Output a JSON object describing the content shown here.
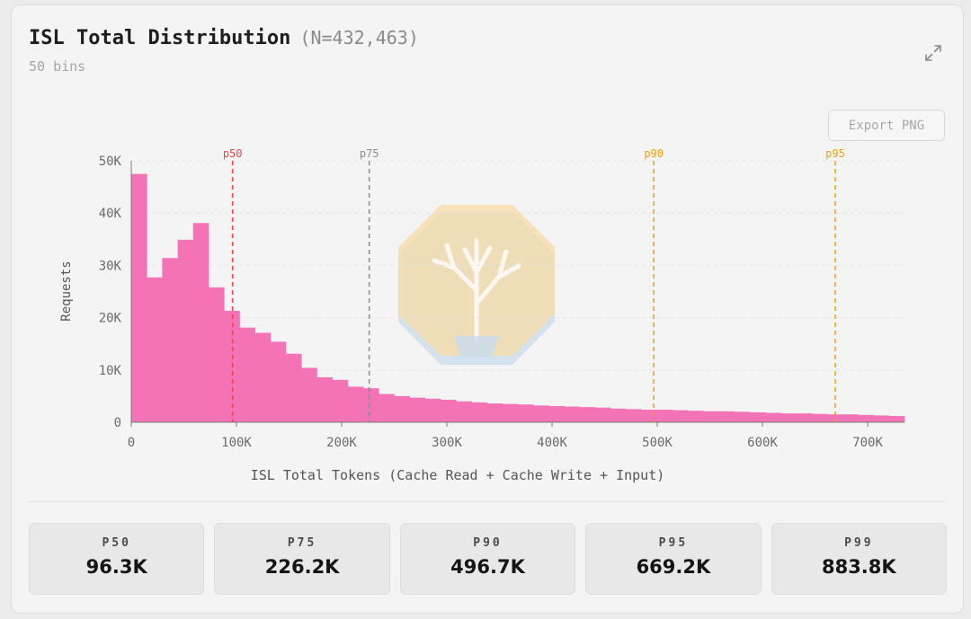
{
  "header": {
    "title": "ISL Total Distribution",
    "count": "(N=432,463)",
    "subtitle": "50 bins",
    "export_label": "Export PNG"
  },
  "icons": {
    "expand": "expand-icon",
    "logo": "tree-logo"
  },
  "chart_data": {
    "type": "bar",
    "title": "ISL Total Distribution",
    "xlabel": "ISL Total Tokens (Cache Read + Cache Write + Input)",
    "ylabel": "Requests",
    "xlim": [
      0,
      735000
    ],
    "ylim": [
      0,
      50000
    ],
    "grid": true,
    "bin_width": 14700,
    "x_ticks": [
      0,
      100000,
      200000,
      300000,
      400000,
      500000,
      600000,
      700000
    ],
    "x_tick_labels": [
      "0",
      "100K",
      "200K",
      "300K",
      "400K",
      "500K",
      "600K",
      "700K"
    ],
    "y_ticks": [
      0,
      10000,
      20000,
      30000,
      40000,
      50000
    ],
    "y_tick_labels": [
      "0",
      "10K",
      "20K",
      "30K",
      "40K",
      "50K"
    ],
    "bar_color": "#f472b6",
    "values": [
      47500,
      27700,
      31400,
      34900,
      38100,
      25800,
      21300,
      18100,
      17100,
      15400,
      13100,
      10400,
      8600,
      8100,
      6800,
      6500,
      5400,
      5000,
      4700,
      4500,
      4300,
      4000,
      3800,
      3600,
      3500,
      3400,
      3200,
      3100,
      3000,
      2900,
      2800,
      2600,
      2500,
      2400,
      2400,
      2300,
      2200,
      2100,
      2100,
      2000,
      1900,
      1800,
      1700,
      1700,
      1600,
      1500,
      1500,
      1400,
      1300,
      1200
    ],
    "percentile_lines": [
      {
        "label": "p50",
        "value": 96300,
        "color": "#ef4444"
      },
      {
        "label": "p75",
        "value": 226200,
        "color": "#8b8b8b"
      },
      {
        "label": "p90",
        "value": 496700,
        "color": "#f59e0b"
      },
      {
        "label": "p95",
        "value": 669200,
        "color": "#f59e0b"
      }
    ]
  },
  "stats": [
    {
      "label": "P50",
      "value": "96.3K"
    },
    {
      "label": "P75",
      "value": "226.2K"
    },
    {
      "label": "P90",
      "value": "496.7K"
    },
    {
      "label": "P95",
      "value": "669.2K"
    },
    {
      "label": "P99",
      "value": "883.8K"
    }
  ]
}
